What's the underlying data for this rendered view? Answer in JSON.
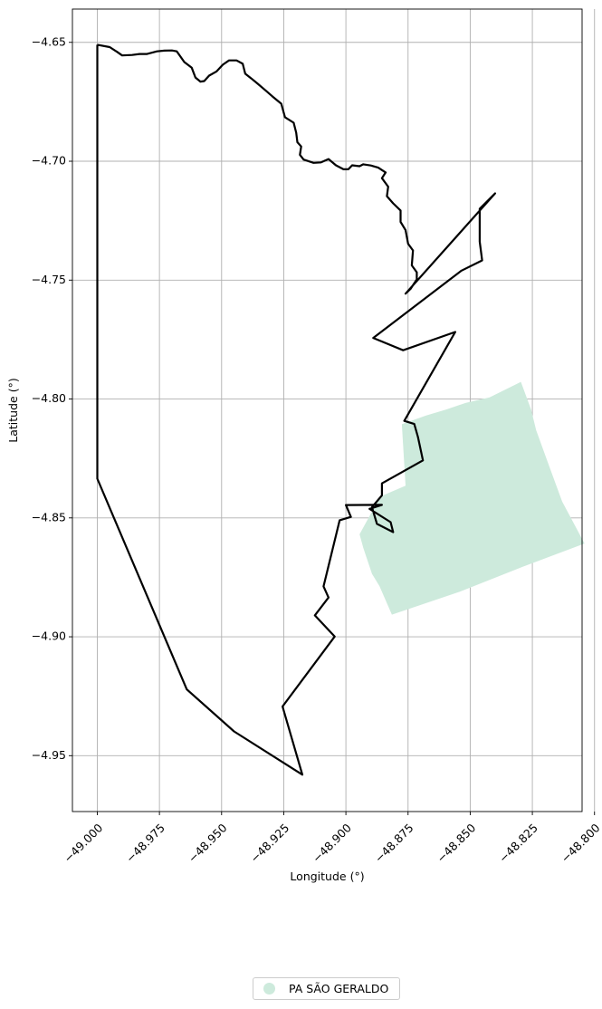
{
  "chart_data": {
    "type": "map",
    "xlabel": "Longitude (°)",
    "ylabel": "Latitude (°)",
    "xlim": [
      -49.01,
      -48.805
    ],
    "ylim": [
      -4.9735,
      -4.636
    ],
    "grid": true,
    "legend_placement": "bottom-center",
    "x_ticks": [
      -49.0,
      -48.975,
      -48.95,
      -48.925,
      -48.9,
      -48.875,
      -48.85,
      -48.825,
      -48.8
    ],
    "x_tick_labels": [
      "−49.000",
      "−48.975",
      "−48.950",
      "−48.925",
      "−48.900",
      "−48.875",
      "−48.850",
      "−48.825",
      "−48.800"
    ],
    "y_ticks": [
      -4.65,
      -4.7,
      -4.75,
      -4.8,
      -4.85,
      -4.9,
      -4.95
    ],
    "y_tick_labels": [
      "−4.65",
      "−4.70",
      "−4.75",
      "−4.80",
      "−4.85",
      "−4.90",
      "−4.95"
    ],
    "boundary": {
      "color": "#000000",
      "coordinates": [
        [
          -49.0,
          -4.651
        ],
        [
          -48.995,
          -4.652
        ],
        [
          -48.992,
          -4.654
        ],
        [
          -48.99,
          -4.6555
        ],
        [
          -48.986,
          -4.6553
        ],
        [
          -48.983,
          -4.6549
        ],
        [
          -48.98,
          -4.6549
        ],
        [
          -48.976,
          -4.6538
        ],
        [
          -48.973,
          -4.6535
        ],
        [
          -48.97,
          -4.6534
        ],
        [
          -48.968,
          -4.6538
        ],
        [
          -48.965,
          -4.6583
        ],
        [
          -48.962,
          -4.6607
        ],
        [
          -48.9605,
          -4.6648
        ],
        [
          -48.9585,
          -4.6665
        ],
        [
          -48.957,
          -4.6663
        ],
        [
          -48.955,
          -4.664
        ],
        [
          -48.952,
          -4.6622
        ],
        [
          -48.9495,
          -4.6594
        ],
        [
          -48.947,
          -4.6576
        ],
        [
          -48.944,
          -4.6576
        ],
        [
          -48.9415,
          -4.659
        ],
        [
          -48.9405,
          -4.6632
        ],
        [
          -48.938,
          -4.6652
        ],
        [
          -48.9355,
          -4.6674
        ],
        [
          -48.932,
          -4.6705
        ],
        [
          -48.9295,
          -4.6728
        ],
        [
          -48.926,
          -4.6758
        ],
        [
          -48.9245,
          -4.6815
        ],
        [
          -48.921,
          -4.6838
        ],
        [
          -48.92,
          -4.688
        ],
        [
          -48.9195,
          -4.692
        ],
        [
          -48.918,
          -4.6938
        ],
        [
          -48.9185,
          -4.6973
        ],
        [
          -48.917,
          -4.6993
        ],
        [
          -48.913,
          -4.7007
        ],
        [
          -48.91,
          -4.7005
        ],
        [
          -48.907,
          -4.6991
        ],
        [
          -48.904,
          -4.7017
        ],
        [
          -48.901,
          -4.7034
        ],
        [
          -48.899,
          -4.7034
        ],
        [
          -48.8975,
          -4.7017
        ],
        [
          -48.8945,
          -4.7021
        ],
        [
          -48.893,
          -4.7013
        ],
        [
          -48.89,
          -4.7018
        ],
        [
          -48.887,
          -4.7027
        ],
        [
          -48.884,
          -4.7047
        ],
        [
          -48.8855,
          -4.7071
        ],
        [
          -48.883,
          -4.7107
        ],
        [
          -48.8835,
          -4.7147
        ],
        [
          -48.881,
          -4.7177
        ],
        [
          -48.878,
          -4.7207
        ],
        [
          -48.878,
          -4.7255
        ],
        [
          -48.876,
          -4.729
        ],
        [
          -48.875,
          -4.7347
        ],
        [
          -48.873,
          -4.7375
        ],
        [
          -48.8735,
          -4.7438
        ],
        [
          -48.8715,
          -4.7467
        ],
        [
          -48.8715,
          -4.7497
        ],
        [
          -48.874,
          -4.7537
        ],
        [
          -48.876,
          -4.7557
        ],
        [
          -48.84,
          -4.7135
        ],
        [
          -48.8462,
          -4.72
        ],
        [
          -48.8462,
          -4.7338
        ],
        [
          -48.8452,
          -4.7417
        ],
        [
          -48.8535,
          -4.746
        ],
        [
          -48.889,
          -4.7743
        ],
        [
          -48.877,
          -4.7795
        ],
        [
          -48.856,
          -4.7718
        ],
        [
          -48.8765,
          -4.8092
        ],
        [
          -48.8725,
          -4.8105
        ],
        [
          -48.871,
          -4.816
        ],
        [
          -48.869,
          -4.8258
        ],
        [
          -48.8855,
          -4.8355
        ],
        [
          -48.8855,
          -4.8405
        ],
        [
          -48.8895,
          -4.8455
        ],
        [
          -48.8875,
          -4.8525
        ],
        [
          -48.881,
          -4.856
        ],
        [
          -48.882,
          -4.8518
        ],
        [
          -48.8905,
          -4.8462
        ],
        [
          -48.8855,
          -4.8445
        ],
        [
          -48.9,
          -4.8446
        ],
        [
          -48.898,
          -4.8496
        ],
        [
          -48.9025,
          -4.851
        ],
        [
          -48.909,
          -4.8788
        ],
        [
          -48.907,
          -4.8835
        ],
        [
          -48.9125,
          -4.891
        ],
        [
          -48.9045,
          -4.8999
        ],
        [
          -48.9255,
          -4.9293
        ],
        [
          -48.9175,
          -4.958
        ],
        [
          -48.945,
          -4.9398
        ],
        [
          -48.964,
          -4.9221
        ],
        [
          -49.0,
          -4.8335
        ],
        [
          -49.0,
          -4.651
        ]
      ]
    },
    "series": [
      {
        "name": "PA SÃO GERALDO",
        "color": "#cdeadc",
        "polygon": [
          [
            -48.8296,
            -4.7928
          ],
          [
            -48.8422,
            -4.7993
          ],
          [
            -48.8517,
            -4.8016
          ],
          [
            -48.8598,
            -4.8045
          ],
          [
            -48.8679,
            -4.807
          ],
          [
            -48.8775,
            -4.8106
          ],
          [
            -48.876,
            -4.8365
          ],
          [
            -48.8862,
            -4.841
          ],
          [
            -48.8945,
            -4.8569
          ],
          [
            -48.893,
            -4.8626
          ],
          [
            -48.8895,
            -4.8735
          ],
          [
            -48.8865,
            -4.8787
          ],
          [
            -48.8815,
            -4.8907
          ],
          [
            -48.8543,
            -4.8811
          ],
          [
            -48.829,
            -4.8706
          ],
          [
            -48.804,
            -4.8608
          ],
          [
            -48.813,
            -4.8431
          ],
          [
            -48.8182,
            -4.8283
          ],
          [
            -48.8235,
            -4.813
          ],
          [
            -48.8255,
            -4.8045
          ]
        ]
      }
    ],
    "legend": [
      {
        "label": "PA SÃO GERALDO",
        "color": "#cdeadc",
        "marker": "circle"
      }
    ]
  }
}
